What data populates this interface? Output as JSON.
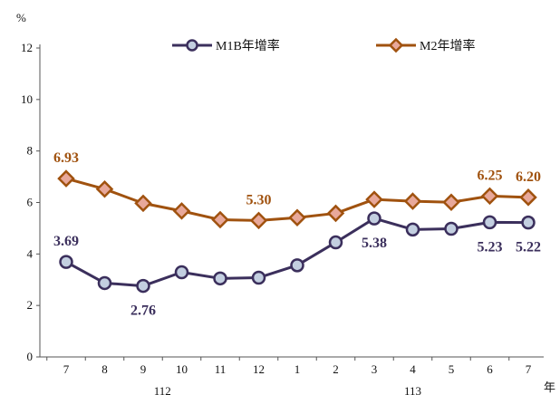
{
  "chart_data": {
    "type": "line",
    "categories": [
      "7",
      "8",
      "9",
      "10",
      "11",
      "12",
      "1",
      "2",
      "3",
      "4",
      "5",
      "6",
      "7"
    ],
    "year_groups": [
      {
        "label": "112",
        "from": 0,
        "to": 5
      },
      {
        "label": "113",
        "from": 6,
        "to": 12
      }
    ],
    "x_unit": "年",
    "y_unit": "%",
    "ylim": [
      0,
      12
    ],
    "yticks": [
      0,
      2,
      4,
      6,
      8,
      10,
      12
    ],
    "legend_position": "top",
    "series": [
      {
        "name": "M1B年增率",
        "line_color": "#3b2f5c",
        "marker": "circle",
        "marker_fill": "#c3cfe0",
        "label_color": "#3b2f5c",
        "values": [
          3.69,
          2.87,
          2.76,
          3.29,
          3.05,
          3.08,
          3.56,
          4.45,
          5.38,
          4.95,
          4.98,
          5.23,
          5.22
        ],
        "labels": [
          {
            "index": 0,
            "text": "3.69",
            "position": "above"
          },
          {
            "index": 2,
            "text": "2.76",
            "position": "below"
          },
          {
            "index": 8,
            "text": "5.38",
            "position": "below"
          },
          {
            "index": 11,
            "text": "5.23",
            "position": "below"
          },
          {
            "index": 12,
            "text": "5.22",
            "position": "below"
          }
        ]
      },
      {
        "name": "M2年增率",
        "line_color": "#a0520f",
        "marker": "diamond",
        "marker_fill": "#e8a89a",
        "label_color": "#a0520f",
        "values": [
          6.93,
          6.52,
          5.97,
          5.67,
          5.33,
          5.3,
          5.41,
          5.58,
          6.12,
          6.05,
          6.01,
          6.25,
          6.2
        ],
        "labels": [
          {
            "index": 0,
            "text": "6.93",
            "position": "above"
          },
          {
            "index": 5,
            "text": "5.30",
            "position": "above"
          },
          {
            "index": 11,
            "text": "6.25",
            "position": "above"
          },
          {
            "index": 12,
            "text": "6.20",
            "position": "above"
          }
        ]
      }
    ]
  }
}
